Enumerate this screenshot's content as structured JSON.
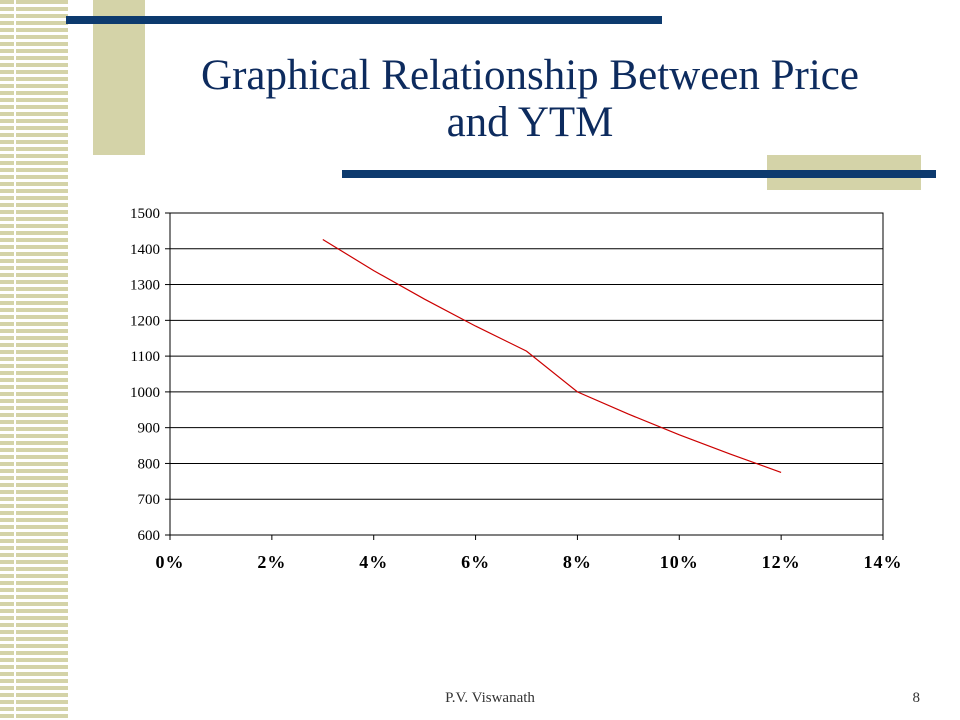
{
  "slide": {
    "title_line1": "Graphical Relationship Between Price",
    "title_line2": "and YTM",
    "footer_author": "P.V. Viswanath",
    "page_number": "8"
  },
  "colors": {
    "title": "#0d2b5e",
    "accent_bar": "#0d3a6e",
    "accent_block": "#d4d3a8",
    "curve": "#cc0000"
  },
  "chart_data": {
    "type": "line",
    "title": "",
    "xlabel": "",
    "ylabel": "",
    "xlim": [
      0,
      0.14
    ],
    "ylim": [
      600,
      1500
    ],
    "x_ticks": [
      0,
      0.02,
      0.04,
      0.06,
      0.08,
      0.1,
      0.12,
      0.14
    ],
    "x_tick_labels": [
      "0%",
      "2%",
      "4%",
      "6%",
      "8%",
      "10%",
      "12%",
      "14%"
    ],
    "y_ticks": [
      600,
      700,
      800,
      900,
      1000,
      1100,
      1200,
      1300,
      1400,
      1500
    ],
    "y_tick_labels": [
      "600",
      "700",
      "800",
      "900",
      "1000",
      "1100",
      "1200",
      "1300",
      "1400",
      "1500"
    ],
    "grid": "horizontal",
    "legend": "none",
    "series": [
      {
        "x": [
          0.03,
          0.04,
          0.05,
          0.06,
          0.07,
          0.08,
          0.09,
          0.1,
          0.11,
          0.12
        ],
        "values": [
          1426,
          1339,
          1259,
          1184,
          1114,
          1000,
          938,
          880,
          826,
          775
        ]
      }
    ]
  }
}
